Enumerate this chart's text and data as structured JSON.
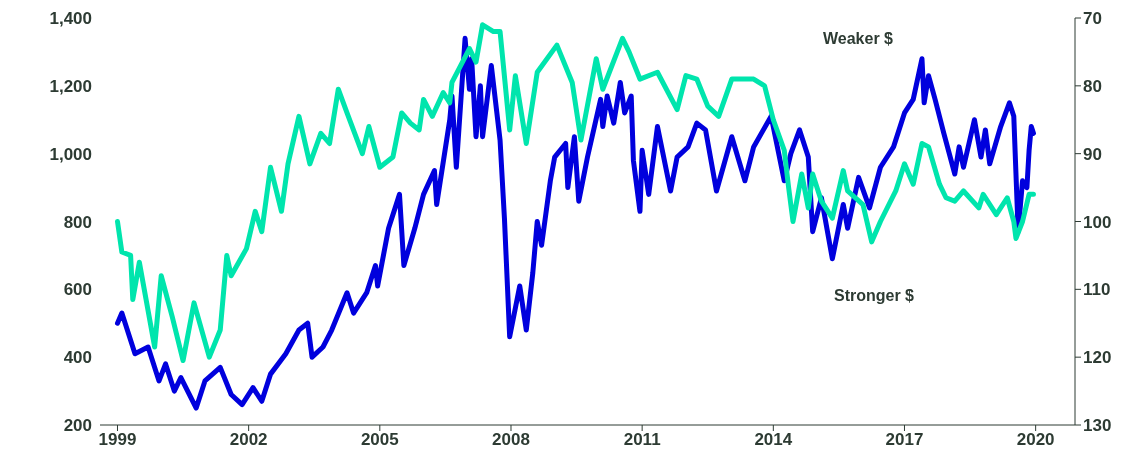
{
  "chart_data": {
    "type": "line",
    "xlim": [
      1998.6,
      2020.9
    ],
    "xticks": [
      1999,
      2002,
      2005,
      2008,
      2011,
      2014,
      2017,
      2020
    ],
    "ylim": [
      200,
      1400
    ],
    "yticks": [
      {
        "value": 200,
        "label": "200"
      },
      {
        "value": 400,
        "label": "400"
      },
      {
        "value": 600,
        "label": "600"
      },
      {
        "value": 800,
        "label": "800"
      },
      {
        "value": 1000,
        "label": "1,000"
      },
      {
        "value": 1200,
        "label": "1,200"
      },
      {
        "value": 1400,
        "label": "1,400"
      }
    ],
    "y2lim": [
      130,
      70
    ],
    "y2ticks": [
      70,
      80,
      90,
      100,
      110,
      120,
      130
    ],
    "annotations": [
      "Weaker $",
      "Stronger $"
    ],
    "series": [
      {
        "color": "#0000dd",
        "x": [
          1999.0,
          1999.1,
          1999.4,
          1999.7,
          1999.95,
          2000.1,
          2000.3,
          2000.45,
          2000.8,
          2001.0,
          2001.35,
          2001.6,
          2001.85,
          2002.1,
          2002.3,
          2002.5,
          2002.85,
          2003.15,
          2003.35,
          2003.45,
          2003.7,
          2003.9,
          2004.25,
          2004.4,
          2004.7,
          2004.9,
          2004.95,
          2005.2,
          2005.45,
          2005.55,
          2005.8,
          2006.0,
          2006.25,
          2006.3,
          2006.6,
          2006.65,
          2006.75,
          2006.95,
          2007.05,
          2007.1,
          2007.2,
          2007.3,
          2007.35,
          2007.55,
          2007.75,
          2007.85,
          2007.97,
          2008.2,
          2008.35,
          2008.5,
          2008.6,
          2008.7,
          2008.9,
          2009.0,
          2009.25,
          2009.3,
          2009.45,
          2009.55,
          2009.75,
          2010.05,
          2010.1,
          2010.2,
          2010.35,
          2010.5,
          2010.6,
          2010.75,
          2010.8,
          2010.95,
          2011.0,
          2011.15,
          2011.35,
          2011.65,
          2011.8,
          2012.05,
          2012.25,
          2012.45,
          2012.7,
          2013.05,
          2013.35,
          2013.55,
          2013.95,
          2014.25,
          2014.4,
          2014.6,
          2014.8,
          2014.9,
          2015.1,
          2015.35,
          2015.6,
          2015.7,
          2015.95,
          2016.2,
          2016.45,
          2016.75,
          2017.0,
          2017.2,
          2017.4,
          2017.45,
          2017.55,
          2017.7,
          2017.9,
          2018.15,
          2018.25,
          2018.35,
          2018.6,
          2018.75,
          2018.85,
          2018.95,
          2019.2,
          2019.4,
          2019.5,
          2019.6,
          2019.7,
          2019.8,
          2019.85,
          2019.9,
          2019.95
        ],
        "values": [
          500,
          530,
          410,
          430,
          330,
          380,
          300,
          340,
          250,
          330,
          370,
          290,
          260,
          310,
          270,
          350,
          410,
          480,
          500,
          400,
          430,
          480,
          590,
          530,
          590,
          670,
          610,
          780,
          880,
          670,
          780,
          880,
          950,
          850,
          1100,
          1170,
          960,
          1340,
          1190,
          1280,
          1050,
          1200,
          1050,
          1260,
          1040,
          810,
          460,
          610,
          480,
          650,
          800,
          730,
          920,
          990,
          1030,
          900,
          1050,
          860,
          990,
          1160,
          1080,
          1170,
          1090,
          1210,
          1120,
          1170,
          980,
          830,
          1010,
          880,
          1080,
          890,
          990,
          1020,
          1090,
          1070,
          890,
          1050,
          920,
          1020,
          1110,
          920,
          1000,
          1070,
          990,
          770,
          870,
          690,
          850,
          780,
          930,
          840,
          960,
          1020,
          1120,
          1160,
          1280,
          1150,
          1230,
          1160,
          1060,
          940,
          1020,
          960,
          1100,
          990,
          1070,
          970,
          1080,
          1150,
          1110,
          770,
          920,
          900,
          1010,
          1080,
          1060
        ]
      },
      {
        "color": "#00e5ad",
        "axis": "y2",
        "x": [
          1999.0,
          1999.1,
          1999.3,
          1999.35,
          1999.5,
          1999.85,
          2000.0,
          2000.25,
          2000.5,
          2000.75,
          2001.1,
          2001.35,
          2001.5,
          2001.6,
          2001.95,
          2002.15,
          2002.3,
          2002.5,
          2002.75,
          2002.9,
          2003.15,
          2003.4,
          2003.65,
          2003.85,
          2004.05,
          2004.25,
          2004.6,
          2004.75,
          2005.0,
          2005.3,
          2005.5,
          2005.7,
          2005.9,
          2006.0,
          2006.2,
          2006.45,
          2006.6,
          2006.65,
          2007.05,
          2007.2,
          2007.35,
          2007.6,
          2007.75,
          2007.97,
          2008.1,
          2008.35,
          2008.6,
          2009.05,
          2009.4,
          2009.6,
          2009.95,
          2010.1,
          2010.55,
          2010.7,
          2010.95,
          2011.35,
          2011.8,
          2012.0,
          2012.25,
          2012.5,
          2012.75,
          2013.05,
          2013.55,
          2013.8,
          2014.0,
          2014.25,
          2014.35,
          2014.45,
          2014.65,
          2014.8,
          2014.9,
          2015.1,
          2015.35,
          2015.6,
          2015.7,
          2016.05,
          2016.25,
          2016.45,
          2016.8,
          2017.0,
          2017.2,
          2017.4,
          2017.55,
          2017.8,
          2017.95,
          2018.15,
          2018.35,
          2018.7,
          2018.8,
          2019.1,
          2019.35,
          2019.5,
          2019.55,
          2019.7,
          2019.85,
          2019.95
        ],
        "values": [
          100,
          104.5,
          105,
          111.5,
          106,
          118.5,
          108,
          114,
          120.5,
          112,
          120,
          116,
          105,
          108,
          104,
          98.5,
          101.5,
          92,
          98.5,
          91.5,
          84.5,
          91.5,
          87,
          88.5,
          80.5,
          84,
          90,
          86,
          92,
          90.5,
          84,
          85.5,
          86.5,
          82,
          84.5,
          81,
          82.5,
          79.5,
          74.5,
          76.5,
          71,
          72,
          72,
          86.5,
          78.5,
          88.5,
          78,
          74,
          79.5,
          88,
          76,
          80.5,
          73,
          75,
          79,
          78,
          83.5,
          78.5,
          79,
          83,
          84.5,
          79,
          79,
          80,
          85,
          89.5,
          95,
          100,
          93,
          98,
          93,
          97,
          99.5,
          92.5,
          95.5,
          97.5,
          103,
          100,
          95.5,
          91.5,
          94.5,
          88.5,
          89,
          94.5,
          96.5,
          97,
          95.5,
          98,
          96,
          99,
          96.5,
          100,
          102.5,
          100,
          96,
          96
        ]
      }
    ]
  }
}
